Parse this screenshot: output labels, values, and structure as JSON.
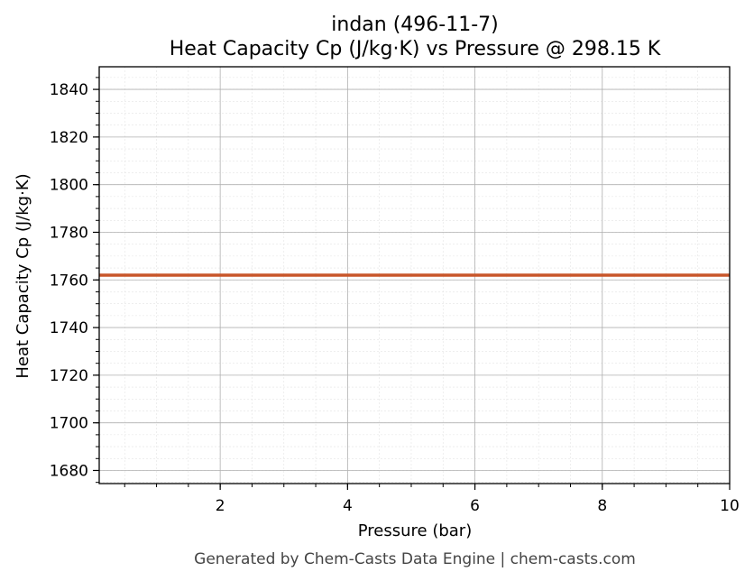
{
  "chart_data": {
    "type": "line",
    "title": "indan (496-11-7)",
    "subtitle": "Heat Capacity Cp (J/kg·K) vs Pressure @ 298.15 K",
    "xlabel": "Pressure (bar)",
    "ylabel": "Heat Capacity Cp (J/kg·K)",
    "xlim": [
      0.1,
      10
    ],
    "ylim": [
      1674.5,
      1849.5
    ],
    "xticks": [
      2,
      4,
      6,
      8,
      10
    ],
    "yticks": [
      1680,
      1700,
      1720,
      1740,
      1760,
      1780,
      1800,
      1820,
      1840
    ],
    "grid": true,
    "minor_grid": true,
    "series": [
      {
        "color": "#c8562a",
        "x": [
          0.1,
          10
        ],
        "y": [
          1762,
          1762
        ]
      }
    ]
  },
  "footer": "Generated by Chem-Casts Data Engine | chem-casts.com"
}
